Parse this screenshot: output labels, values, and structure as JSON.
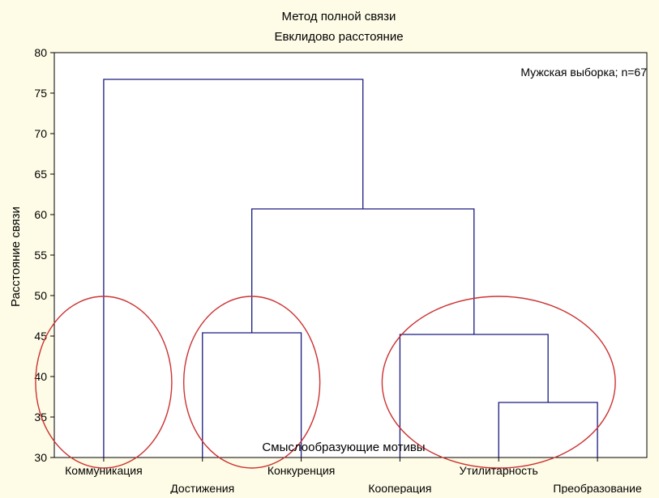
{
  "chart_data": {
    "type": "dendrogram",
    "title": "Метод полной связи",
    "subtitle": "Евклидово расстояние",
    "xlabel": "Смыслообразующие мотивы",
    "ylabel": "Расстояние связи",
    "annotation": "Мужская выборка; n=67",
    "ylim": [
      30,
      80
    ],
    "yticks": [
      30,
      35,
      40,
      45,
      50,
      55,
      60,
      65,
      70,
      75,
      80
    ],
    "leaves": [
      "Коммуникация",
      "Достижения",
      "Конкуренция",
      "Кооперация",
      "Утилитарность",
      "Преобразование"
    ],
    "merges": [
      {
        "left": "leaf:4",
        "right": "leaf:5",
        "height": 36.8
      },
      {
        "left": "leaf:1",
        "right": "leaf:2",
        "height": 45.4
      },
      {
        "left": "leaf:3",
        "right": "node:0",
        "height": 45.2
      },
      {
        "left": "node:1",
        "right": "node:2",
        "height": 60.7
      },
      {
        "left": "leaf:0",
        "right": "node:3",
        "height": 76.7
      }
    ],
    "cluster_highlights": [
      {
        "leaves": [
          "Коммуникация"
        ],
        "color": "#cc3333"
      },
      {
        "leaves": [
          "Достижения",
          "Конкуренция"
        ],
        "color": "#cc3333"
      },
      {
        "leaves": [
          "Кооперация",
          "Утилитарность",
          "Преобразование"
        ],
        "color": "#cc3333"
      }
    ],
    "colors": {
      "tree": "#1a1a80",
      "background": "#fefce6",
      "plot": "#ffffff",
      "highlight": "#cc3333"
    }
  }
}
